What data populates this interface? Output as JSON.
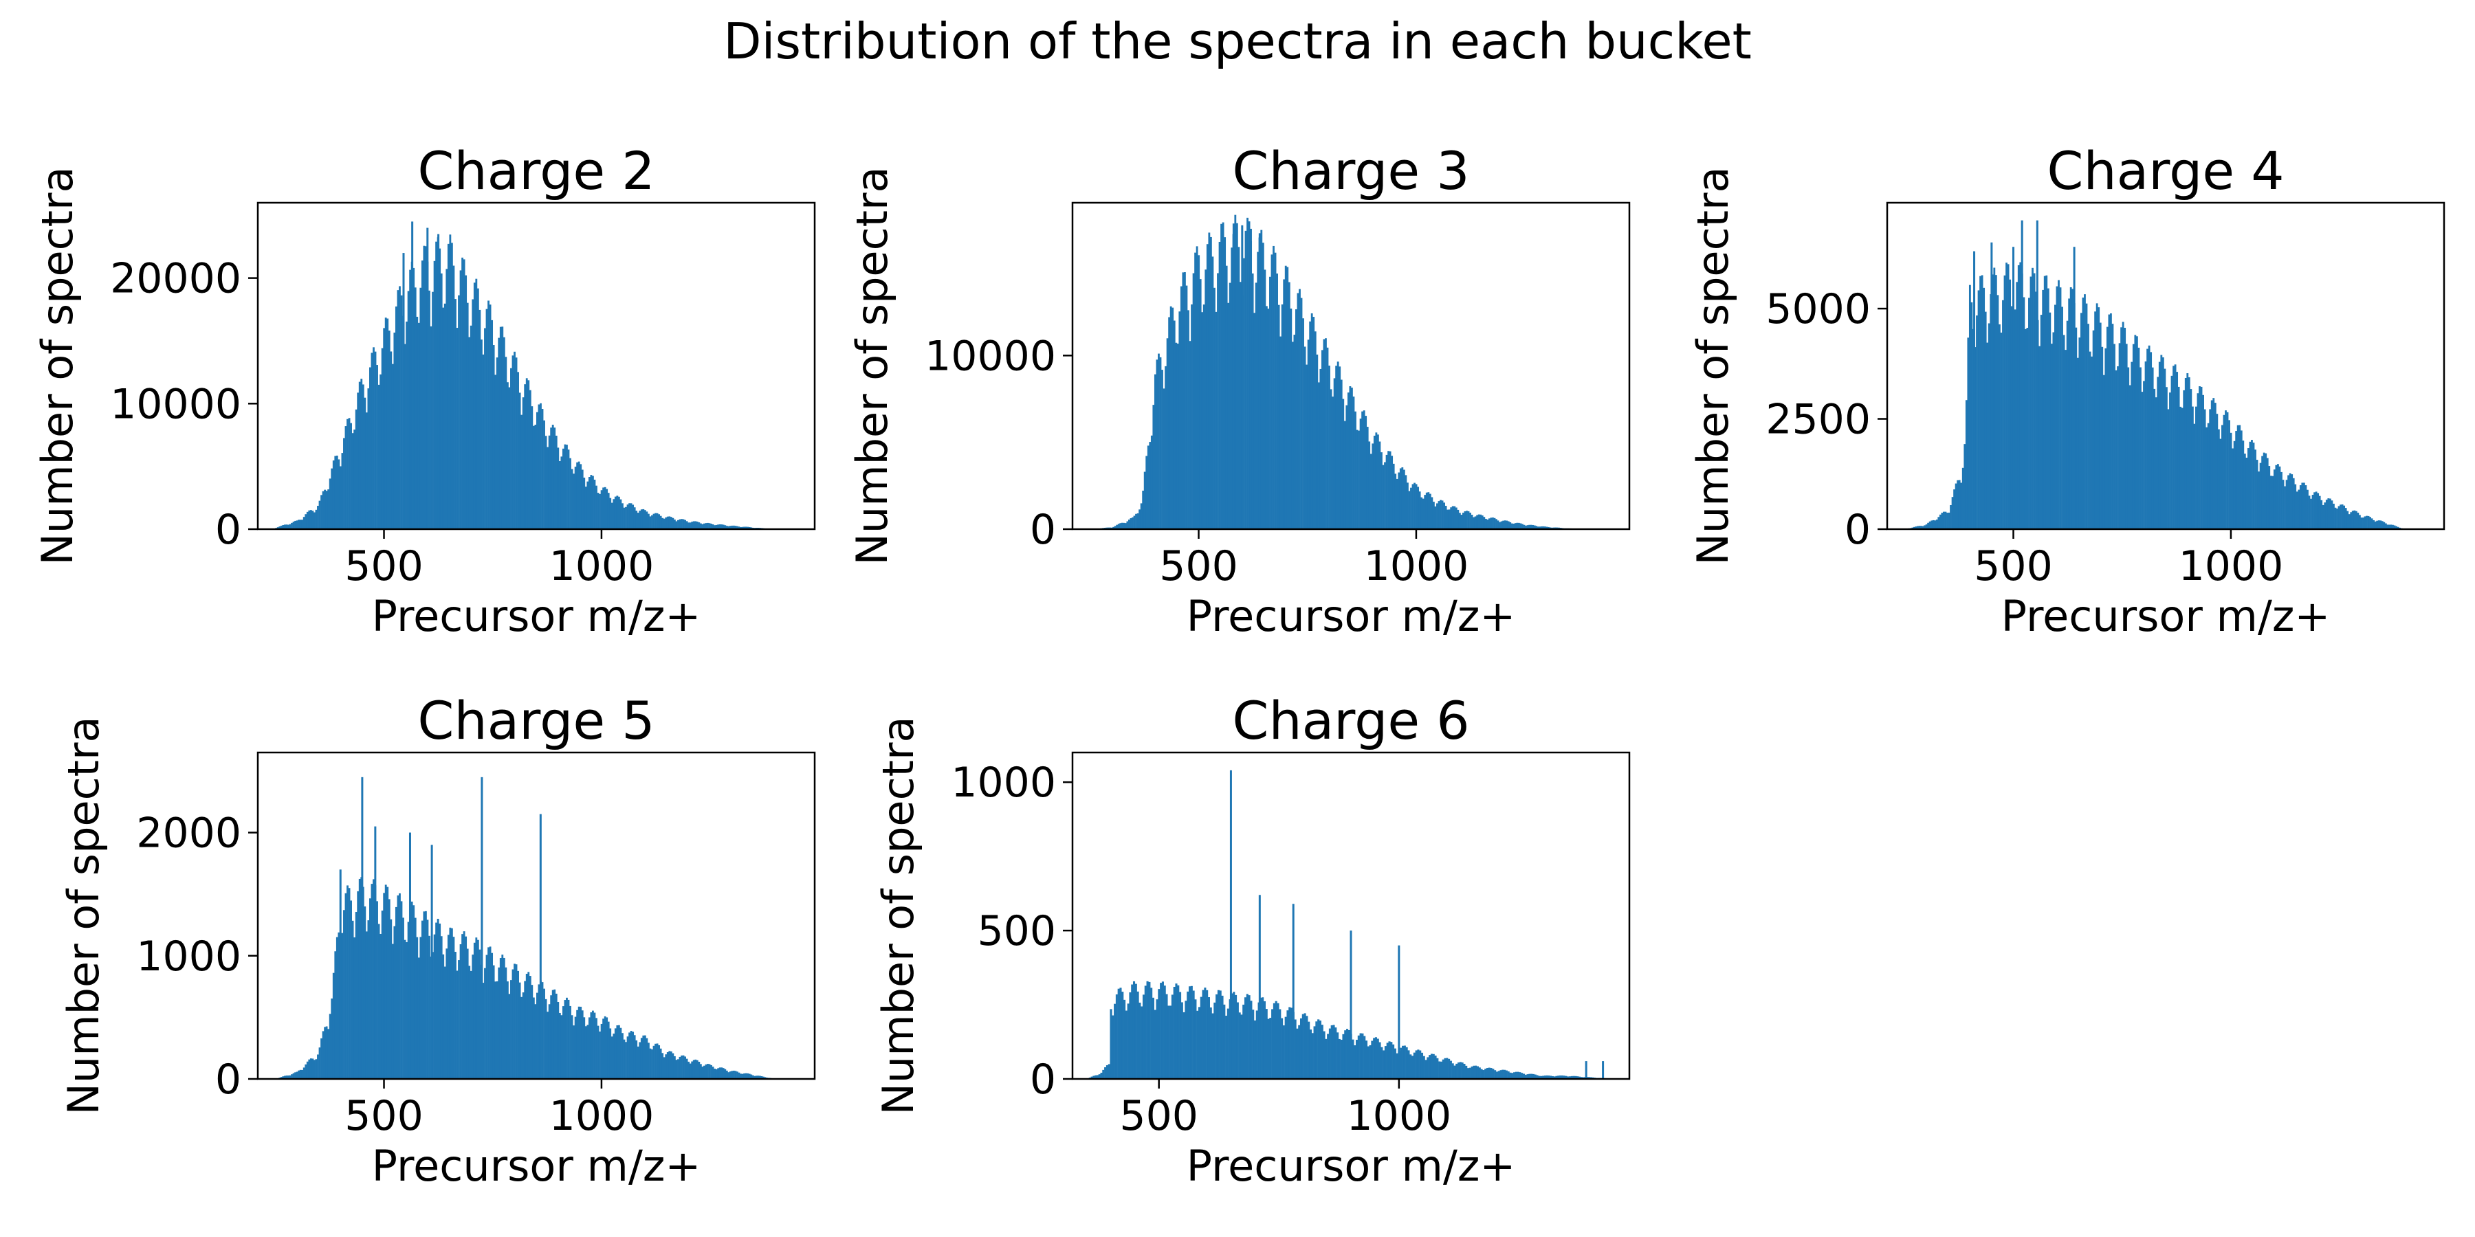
{
  "figure": {
    "title": "Distribution of the spectra in each bucket",
    "bar_color": "#1f77b4"
  },
  "chart_data": [
    {
      "type": "histogram",
      "title": "Charge 2",
      "xlabel": "Precursor m/z+",
      "ylabel": "Number of spectra",
      "xlim": [
        210,
        1490
      ],
      "ylim": [
        0,
        26000
      ],
      "xticks": [
        500,
        1000
      ],
      "yticks": [
        0,
        10000,
        20000
      ],
      "x": [
        250,
        300,
        350,
        400,
        450,
        500,
        550,
        600,
        650,
        700,
        750,
        800,
        850,
        900,
        950,
        1000,
        1050,
        1100,
        1150,
        1200,
        1250,
        1300,
        1350,
        1400
      ],
      "y": [
        100,
        600,
        1800,
        6000,
        10500,
        14000,
        17500,
        19500,
        20000,
        17500,
        15000,
        12000,
        9000,
        6500,
        4500,
        3000,
        2000,
        1300,
        900,
        600,
        400,
        250,
        120,
        0
      ],
      "spikes": [
        [
          565,
          24500
        ],
        [
          600,
          24000
        ],
        [
          625,
          23500
        ],
        [
          650,
          22500
        ],
        [
          545,
          22000
        ]
      ]
    },
    {
      "type": "histogram",
      "title": "Charge 3",
      "xlabel": "Precursor m/z+",
      "ylabel": "Number of spectra",
      "xlim": [
        210,
        1490
      ],
      "ylim": [
        0,
        18800
      ],
      "xticks": [
        500,
        1000
      ],
      "yticks": [
        0,
        10000
      ],
      "x": [
        250,
        300,
        350,
        370,
        400,
        450,
        500,
        550,
        600,
        650,
        700,
        750,
        800,
        850,
        900,
        950,
        1000,
        1050,
        1100,
        1150,
        1200,
        1250,
        1300,
        1350,
        1400
      ],
      "y": [
        0,
        100,
        600,
        1500,
        8000,
        12000,
        14000,
        15000,
        15500,
        14500,
        13000,
        11000,
        9000,
        7000,
        5000,
        3500,
        2200,
        1500,
        1000,
        700,
        450,
        250,
        120,
        40,
        0
      ],
      "spikes": [
        [
          600,
          17500
        ],
        [
          620,
          17300
        ],
        [
          580,
          17000
        ],
        [
          640,
          16800
        ]
      ]
    },
    {
      "type": "histogram",
      "title": "Charge 4",
      "xlabel": "Precursor m/z+",
      "ylabel": "Number of spectra",
      "xlim": [
        210,
        1490
      ],
      "ylim": [
        0,
        7400
      ],
      "xticks": [
        500,
        1000
      ],
      "yticks": [
        0,
        2500,
        5000
      ],
      "x": [
        250,
        300,
        350,
        380,
        390,
        400,
        450,
        500,
        550,
        600,
        650,
        700,
        750,
        800,
        850,
        900,
        950,
        1000,
        1050,
        1100,
        1150,
        1200,
        1250,
        1300,
        1350,
        1400
      ],
      "y": [
        0,
        100,
        400,
        1200,
        2000,
        4800,
        5000,
        5200,
        5000,
        4800,
        4600,
        4300,
        4000,
        3600,
        3300,
        3000,
        2600,
        2200,
        1700,
        1300,
        1000,
        700,
        500,
        300,
        150,
        0
      ],
      "spikes": [
        [
          520,
          7000
        ],
        [
          555,
          7000
        ],
        [
          500,
          6400
        ],
        [
          410,
          6300
        ],
        [
          450,
          6500
        ],
        [
          640,
          6400
        ]
      ]
    },
    {
      "type": "histogram",
      "title": "Charge 5",
      "xlabel": "Precursor m/z+",
      "ylabel": "Number of spectra",
      "xlim": [
        210,
        1490
      ],
      "ylim": [
        0,
        2650
      ],
      "xticks": [
        500,
        1000
      ],
      "yticks": [
        0,
        1000,
        2000
      ],
      "x": [
        250,
        300,
        350,
        380,
        400,
        450,
        500,
        550,
        600,
        650,
        700,
        750,
        800,
        850,
        900,
        950,
        1000,
        1050,
        1100,
        1150,
        1200,
        1250,
        1300,
        1350,
        1400
      ],
      "y": [
        0,
        50,
        200,
        600,
        1300,
        1400,
        1350,
        1250,
        1150,
        1050,
        1000,
        900,
        800,
        700,
        600,
        500,
        450,
        350,
        300,
        200,
        150,
        100,
        60,
        30,
        0
      ],
      "spikes": [
        [
          450,
          2450
        ],
        [
          725,
          2450
        ],
        [
          860,
          2150
        ],
        [
          480,
          2050
        ],
        [
          560,
          2000
        ],
        [
          610,
          1900
        ],
        [
          400,
          1700
        ]
      ]
    },
    {
      "type": "histogram",
      "title": "Charge 6",
      "xlabel": "Precursor m/z+",
      "ylabel": "Number of spectra",
      "xlim": [
        320,
        1480
      ],
      "ylim": [
        0,
        1100
      ],
      "xticks": [
        500,
        1000
      ],
      "yticks": [
        0,
        500,
        1000
      ],
      "x": [
        350,
        380,
        398,
        400,
        450,
        500,
        550,
        600,
        650,
        700,
        750,
        800,
        850,
        900,
        950,
        1000,
        1050,
        1100,
        1150,
        1200,
        1250,
        1300,
        1350,
        1400,
        1450
      ],
      "y": [
        0,
        20,
        50,
        250,
        280,
        280,
        270,
        260,
        250,
        240,
        220,
        190,
        160,
        140,
        120,
        100,
        80,
        60,
        40,
        30,
        20,
        10,
        10,
        5,
        0
      ],
      "spikes": [
        [
          650,
          1040
        ],
        [
          710,
          620
        ],
        [
          780,
          590
        ],
        [
          900,
          500
        ],
        [
          1000,
          450
        ],
        [
          1425,
          60
        ],
        [
          1390,
          60
        ]
      ]
    }
  ]
}
